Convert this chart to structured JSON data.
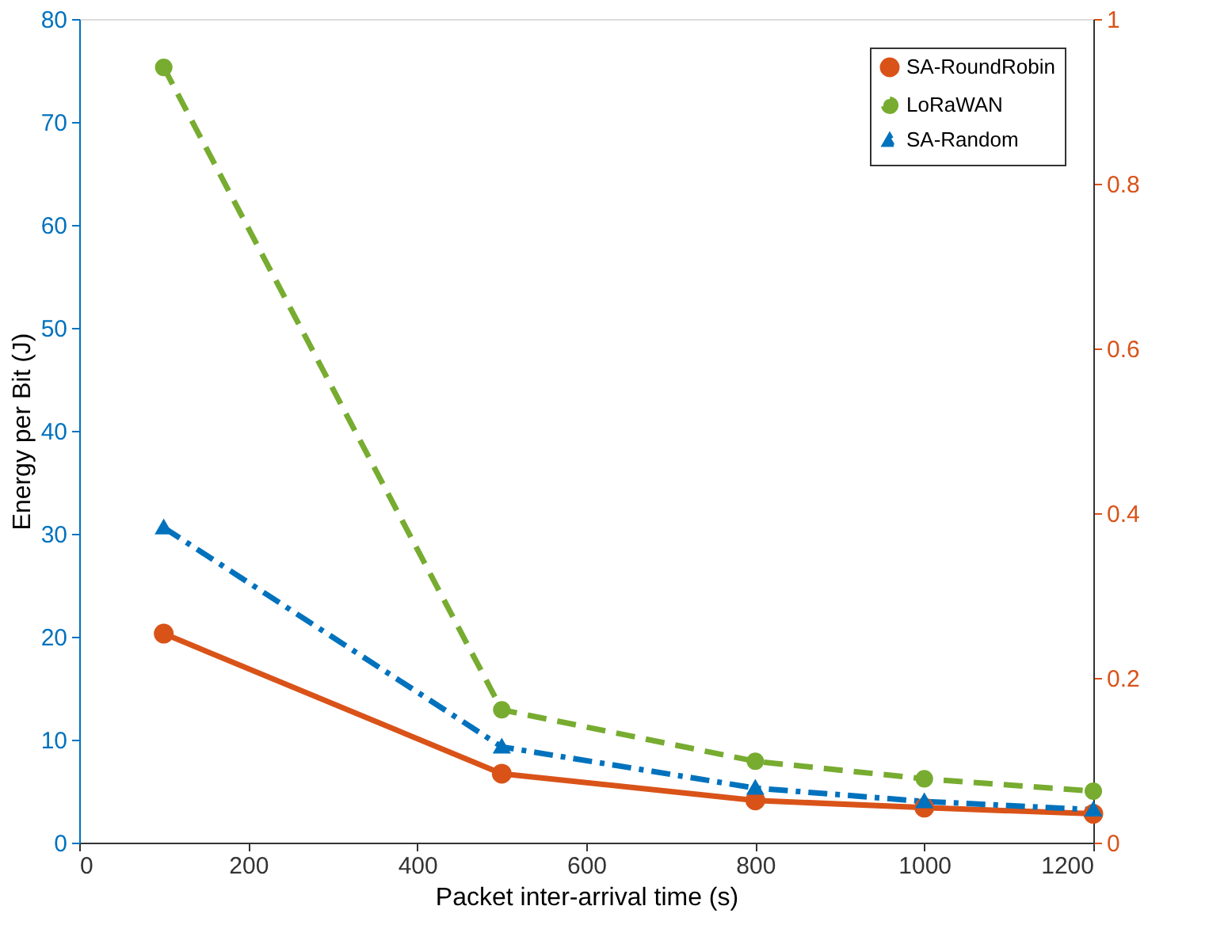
{
  "chart_data": {
    "type": "line",
    "xlabel": "Packet inter-arrival time (s)",
    "ylabel": "Energy per Bit (J)",
    "x": [
      100,
      500,
      800,
      1000,
      1200
    ],
    "xlim": [
      0,
      1200
    ],
    "xticks": [
      0,
      200,
      400,
      600,
      800,
      1000,
      1200
    ],
    "ylim": [
      0,
      80
    ],
    "yticks": [
      0,
      10,
      20,
      30,
      40,
      50,
      60,
      70,
      80
    ],
    "y2lim": [
      0,
      1
    ],
    "y2ticks": [
      0,
      0.2,
      0.4,
      0.6,
      0.8,
      1
    ],
    "grid": false,
    "legend": "top right",
    "series": [
      {
        "name": "SA-RoundRobin",
        "color": "#d95319",
        "values": [
          20.3,
          6.7,
          4.1,
          3.4,
          2.8
        ],
        "marker": "circle",
        "line_style": "solid"
      },
      {
        "name": "LoRaWAN",
        "color": "#77ac30",
        "values": [
          75.3,
          12.9,
          7.9,
          6.2,
          5.0
        ],
        "marker": "circle",
        "line_style": "dashed"
      },
      {
        "name": "SA-Random",
        "color": "#0072bd",
        "values": [
          30.6,
          9.3,
          5.3,
          4.0,
          3.2
        ],
        "marker": "triangle",
        "line_style": "dashdot"
      }
    ]
  }
}
